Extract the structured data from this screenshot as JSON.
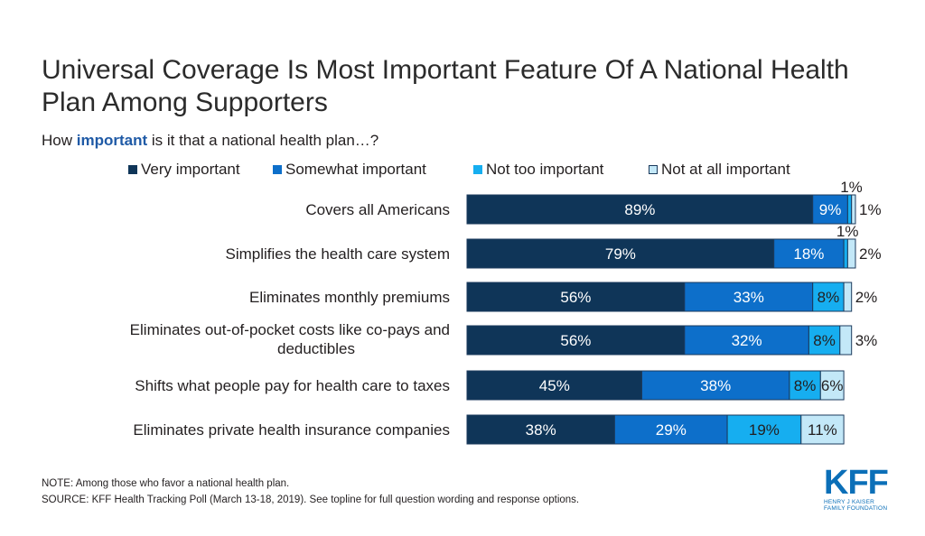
{
  "title": "Universal Coverage Is Most Important Feature Of A National Health Plan Among Supporters",
  "subtitle": {
    "prefix": "How ",
    "emphasis": "important",
    "suffix": " is it that a national health plan…?"
  },
  "note": "NOTE: Among those who favor a national health plan.",
  "source": "SOURCE: KFF Health Tracking Poll (March 13-18, 2019). See topline for full question wording and response options.",
  "logo": {
    "mark": "KFF",
    "line1": "HENRY J KAISER",
    "line2": "FAMILY FOUNDATION"
  },
  "colors": {
    "very": "#0f3558",
    "somewhat": "#0d6fca",
    "not_too": "#16aef0",
    "not_at_all": "#c3e8f8",
    "label_dark": "#ffffff",
    "label_light": "#231f20"
  },
  "chart_data": {
    "type": "bar",
    "orientation": "horizontal",
    "stacked": true,
    "categories": [
      "Covers all Americans",
      "Simplifies the health care system",
      "Eliminates monthly premiums",
      "Eliminates out-of-pocket costs like co-pays and deductibles",
      "Shifts what people pay for health care to taxes",
      "Eliminates private health insurance companies"
    ],
    "series": [
      {
        "name": "Very important",
        "values": [
          89,
          79,
          56,
          56,
          45,
          38
        ]
      },
      {
        "name": "Somewhat important",
        "values": [
          9,
          18,
          33,
          32,
          38,
          29
        ]
      },
      {
        "name": "Not too important",
        "values": [
          1,
          1,
          8,
          8,
          8,
          19
        ]
      },
      {
        "name": "Not at all important",
        "values": [
          1,
          2,
          2,
          3,
          6,
          11
        ]
      }
    ],
    "value_suffix": "%",
    "legend_placement": "top",
    "grid": false,
    "xlim": [
      0,
      100
    ]
  }
}
